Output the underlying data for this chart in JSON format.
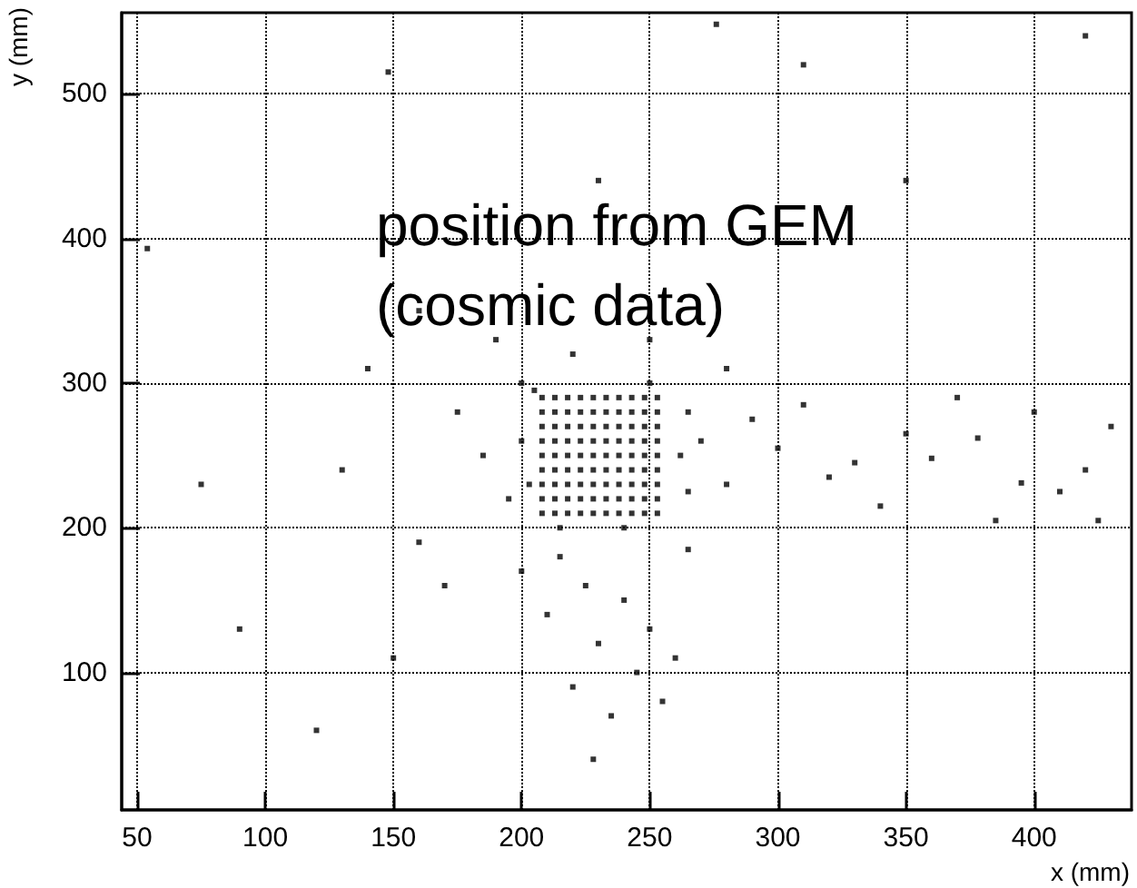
{
  "chart_data": {
    "type": "scatter",
    "xlabel": "x (mm)",
    "ylabel": "y (mm)",
    "annotations": [
      "position from GEM\n(cosmic data)"
    ],
    "xlim": [
      44,
      438
    ],
    "ylim": [
      5,
      556
    ],
    "xticks": [
      50,
      100,
      150,
      200,
      250,
      300,
      350,
      400
    ],
    "yticks": [
      100,
      200,
      300,
      400,
      500
    ],
    "grid": true,
    "marker": "square",
    "series": [
      {
        "color": "#000000",
        "x": [
          208,
          208,
          208,
          208,
          208,
          208,
          208,
          208,
          208,
          213,
          213,
          213,
          213,
          213,
          213,
          213,
          213,
          213,
          218,
          218,
          218,
          218,
          218,
          218,
          218,
          218,
          218,
          223,
          223,
          223,
          223,
          223,
          223,
          223,
          223,
          223,
          228,
          228,
          228,
          228,
          228,
          228,
          228,
          228,
          228,
          233,
          233,
          233,
          233,
          233,
          233,
          233,
          233,
          233,
          238,
          238,
          238,
          238,
          238,
          238,
          238,
          238,
          238,
          243,
          243,
          243,
          243,
          243,
          243,
          243,
          243,
          243,
          248,
          248,
          248,
          248,
          248,
          248,
          248,
          248,
          248,
          253,
          253,
          253,
          253,
          253,
          253,
          253,
          253,
          253,
          360,
          395,
          420,
          430,
          400,
          378,
          350,
          320,
          300,
          290,
          340,
          385,
          410,
          425,
          310,
          370,
          330,
          280,
          270,
          265,
          215,
          225,
          240,
          230,
          245,
          220,
          235,
          250,
          210,
          260,
          228,
          255,
          200,
          265,
          75,
          130,
          160,
          175,
          185,
          150,
          120,
          90,
          170,
          195,
          140,
          190,
          54,
          148,
          276,
          230,
          310,
          250,
          220,
          280,
          200,
          160,
          350,
          420,
          200,
          203,
          262,
          265,
          205,
          250,
          240,
          215
        ],
        "values": [
          210,
          220,
          230,
          240,
          250,
          260,
          270,
          280,
          290,
          210,
          220,
          230,
          240,
          250,
          260,
          270,
          280,
          290,
          210,
          220,
          230,
          240,
          250,
          260,
          270,
          280,
          290,
          210,
          220,
          230,
          240,
          250,
          260,
          270,
          280,
          290,
          210,
          220,
          230,
          240,
          250,
          260,
          270,
          280,
          290,
          210,
          220,
          230,
          240,
          250,
          260,
          270,
          280,
          290,
          210,
          220,
          230,
          240,
          250,
          260,
          270,
          280,
          290,
          210,
          220,
          230,
          240,
          250,
          260,
          270,
          280,
          290,
          210,
          220,
          230,
          240,
          250,
          260,
          270,
          280,
          290,
          210,
          220,
          230,
          240,
          250,
          260,
          270,
          280,
          290,
          248,
          231,
          240,
          270,
          280,
          262,
          265,
          235,
          255,
          275,
          215,
          205,
          225,
          205,
          285,
          290,
          245,
          230,
          260,
          280,
          180,
          160,
          150,
          120,
          100,
          90,
          70,
          130,
          140,
          110,
          40,
          80,
          170,
          185,
          230,
          240,
          190,
          280,
          250,
          110,
          60,
          130,
          160,
          220,
          310,
          330,
          393,
          515,
          548,
          440,
          520,
          330,
          320,
          310,
          300,
          350,
          440,
          540,
          260,
          230,
          250,
          225,
          295,
          300,
          200,
          200
        ]
      }
    ]
  }
}
